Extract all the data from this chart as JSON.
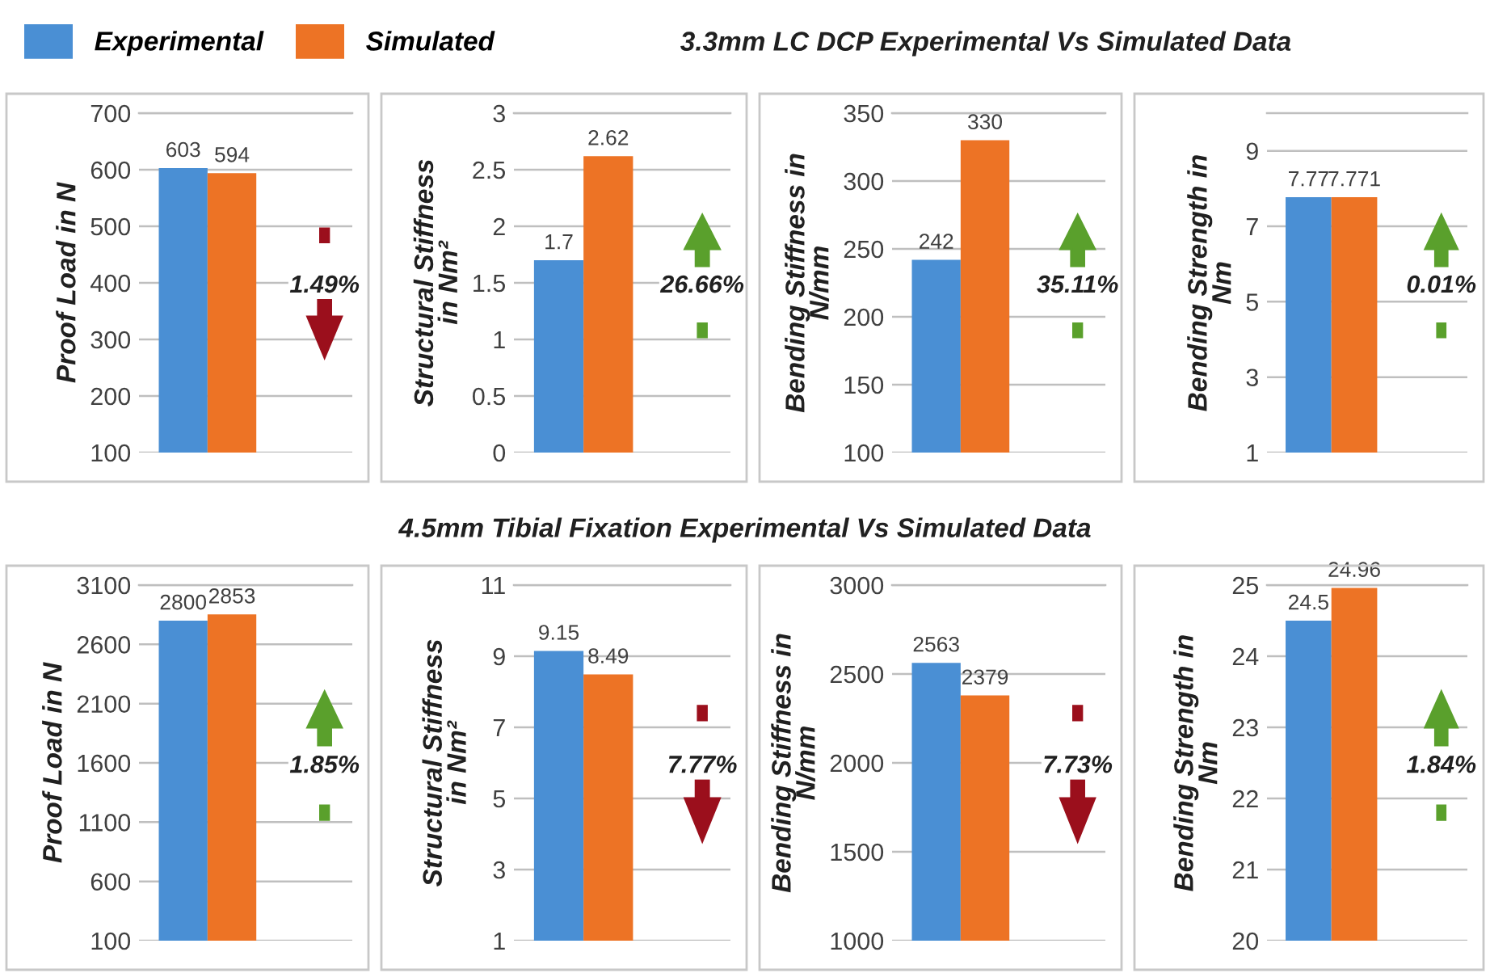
{
  "chart_data": [
    {
      "type": "other",
      "title": "3.3mm LC DCP Experimental Vs Simulated Data"
    },
    {
      "type": "bar",
      "ylabel": "Proof Load in N",
      "categories": [
        null
      ],
      "legend": "top",
      "data_labels": true,
      "grid": "y",
      "ylim": [
        100,
        700
      ],
      "yticks": [
        100,
        200,
        300,
        400,
        500,
        600,
        700
      ],
      "annotations": [
        "1.49%"
      ],
      "series": [
        {
          "name": "Experimental",
          "color": "#4a8fd4",
          "values": [
            603
          ]
        },
        {
          "name": "Simulated",
          "color": "#ed7325",
          "values": [
            594
          ]
        }
      ]
    },
    {
      "type": "bar",
      "ylabel": "Structural Stiffness\nin Nm²",
      "categories": [
        null
      ],
      "data_labels": true,
      "grid": "y",
      "ylim": [
        0,
        3
      ],
      "yticks": [
        0,
        0.5,
        1,
        1.5,
        2,
        2.5,
        3
      ],
      "annotations": [
        "26.66%"
      ],
      "series": [
        {
          "color": "#4a8fd4",
          "values": [
            1.7
          ]
        },
        {
          "color": "#ed7325",
          "values": [
            2.62
          ]
        }
      ]
    },
    {
      "type": "bar",
      "ylabel": "Bending Stiffness in\nN/mm",
      "categories": [
        null
      ],
      "data_labels": true,
      "grid": "y",
      "ylim": [
        100,
        350
      ],
      "yticks": [
        100,
        150,
        200,
        250,
        300,
        350
      ],
      "annotations": [
        "35.11%"
      ],
      "series": [
        {
          "color": "#4a8fd4",
          "values": [
            242
          ]
        },
        {
          "color": "#ed7325",
          "values": [
            330
          ]
        }
      ]
    },
    {
      "type": "bar",
      "ylabel": "Bending Strength in\nNm",
      "categories": [
        null
      ],
      "data_labels": true,
      "grid": "y",
      "ylim": [
        1,
        10
      ],
      "yticks": [
        1,
        3,
        5,
        7,
        9
      ],
      "annotations": [
        "0.01%"
      ],
      "series": [
        {
          "color": "#4a8fd4",
          "values": [
            7.77
          ]
        },
        {
          "color": "#ed7325",
          "values": [
            7.771
          ]
        }
      ]
    },
    {
      "type": "other",
      "title": "4.5mm Tibial Fixation Experimental Vs Simulated Data"
    },
    {
      "type": "bar",
      "ylabel": "Proof Load in N",
      "categories": [
        null
      ],
      "data_labels": true,
      "grid": "y",
      "ylim": [
        100,
        3100
      ],
      "yticks": [
        100,
        600,
        1100,
        1600,
        2100,
        2600,
        3100
      ],
      "annotations": [
        "1.85%"
      ],
      "series": [
        {
          "color": "#4a8fd4",
          "values": [
            2800
          ]
        },
        {
          "color": "#ed7325",
          "values": [
            2853
          ]
        }
      ]
    },
    {
      "type": "bar",
      "ylabel": "Structural Stiffness\nin Nm²",
      "categories": [
        null
      ],
      "data_labels": true,
      "grid": "y",
      "ylim": [
        1,
        11
      ],
      "yticks": [
        1,
        3,
        5,
        7,
        9,
        11
      ],
      "annotations": [
        "7.77%"
      ],
      "series": [
        {
          "color": "#4a8fd4",
          "values": [
            9.15
          ]
        },
        {
          "color": "#ed7325",
          "values": [
            8.49
          ]
        }
      ]
    },
    {
      "type": "bar",
      "ylabel": "Bending Stiffness in\nN/mm",
      "categories": [
        null
      ],
      "data_labels": true,
      "grid": "y",
      "ylim": [
        1000,
        3000
      ],
      "yticks": [
        1000,
        1500,
        2000,
        2500,
        3000
      ],
      "annotations": [
        "7.73%"
      ],
      "series": [
        {
          "color": "#4a8fd4",
          "values": [
            2563
          ]
        },
        {
          "color": "#ed7325",
          "values": [
            2379
          ]
        }
      ]
    },
    {
      "type": "bar",
      "ylabel": "Bending Strength in\nNm",
      "categories": [
        null
      ],
      "data_labels": true,
      "grid": "y",
      "ylim": [
        20,
        25
      ],
      "yticks": [
        20,
        21,
        22,
        23,
        24,
        25
      ],
      "annotations": [
        "1.84%"
      ],
      "series": [
        {
          "color": "#4a8fd4",
          "values": [
            24.5
          ]
        },
        {
          "color": "#ed7325",
          "values": [
            24.96
          ]
        }
      ]
    }
  ]
}
